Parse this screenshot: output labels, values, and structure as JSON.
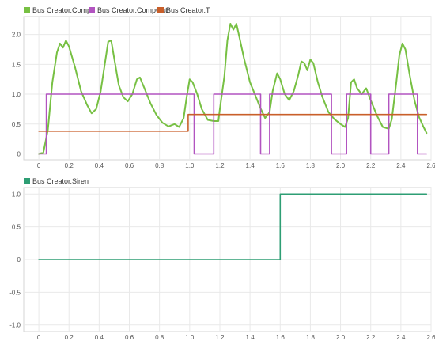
{
  "chart_data": [
    {
      "type": "line",
      "title": "",
      "xlabel": "",
      "ylabel": "",
      "xlim": [
        -0.1,
        2.6
      ],
      "ylim": [
        -0.1,
        2.3
      ],
      "xticks": [
        "0",
        "0.2",
        "0.4",
        "0.6",
        "0.8",
        "1.0",
        "1.2",
        "1.4",
        "1.6",
        "1.8",
        "2.0",
        "2.2",
        "2.4",
        "2.6"
      ],
      "yticks": [
        "0",
        "0.5",
        "1.0",
        "1.5",
        "2.0"
      ],
      "grid": true,
      "legend_position": "top-left",
      "series": [
        {
          "name": "Bus Creator.CompIn",
          "color": "#77c043",
          "step": false,
          "points": [
            [
              0,
              0
            ],
            [
              0.03,
              0.02
            ],
            [
              0.06,
              0.4
            ],
            [
              0.09,
              1.2
            ],
            [
              0.12,
              1.7
            ],
            [
              0.14,
              1.85
            ],
            [
              0.16,
              1.78
            ],
            [
              0.18,
              1.9
            ],
            [
              0.2,
              1.8
            ],
            [
              0.24,
              1.45
            ],
            [
              0.28,
              1.05
            ],
            [
              0.32,
              0.82
            ],
            [
              0.35,
              0.68
            ],
            [
              0.38,
              0.75
            ],
            [
              0.41,
              1.05
            ],
            [
              0.44,
              1.55
            ],
            [
              0.46,
              1.88
            ],
            [
              0.48,
              1.9
            ],
            [
              0.5,
              1.6
            ],
            [
              0.53,
              1.15
            ],
            [
              0.56,
              0.95
            ],
            [
              0.59,
              0.88
            ],
            [
              0.62,
              1.0
            ],
            [
              0.65,
              1.25
            ],
            [
              0.67,
              1.28
            ],
            [
              0.7,
              1.1
            ],
            [
              0.74,
              0.85
            ],
            [
              0.78,
              0.65
            ],
            [
              0.82,
              0.52
            ],
            [
              0.86,
              0.46
            ],
            [
              0.9,
              0.5
            ],
            [
              0.93,
              0.45
            ],
            [
              0.96,
              0.6
            ],
            [
              0.98,
              0.95
            ],
            [
              1.0,
              1.25
            ],
            [
              1.02,
              1.2
            ],
            [
              1.05,
              1.0
            ],
            [
              1.08,
              0.75
            ],
            [
              1.12,
              0.57
            ],
            [
              1.16,
              0.55
            ],
            [
              1.19,
              0.55
            ],
            [
              1.2,
              0.75
            ],
            [
              1.23,
              1.3
            ],
            [
              1.25,
              1.9
            ],
            [
              1.27,
              2.18
            ],
            [
              1.29,
              2.08
            ],
            [
              1.31,
              2.18
            ],
            [
              1.33,
              1.95
            ],
            [
              1.36,
              1.6
            ],
            [
              1.4,
              1.2
            ],
            [
              1.44,
              0.95
            ],
            [
              1.47,
              0.76
            ],
            [
              1.5,
              0.6
            ],
            [
              1.53,
              0.7
            ],
            [
              1.55,
              1.05
            ],
            [
              1.58,
              1.35
            ],
            [
              1.6,
              1.25
            ],
            [
              1.63,
              1.0
            ],
            [
              1.66,
              0.9
            ],
            [
              1.69,
              1.05
            ],
            [
              1.72,
              1.32
            ],
            [
              1.74,
              1.55
            ],
            [
              1.76,
              1.52
            ],
            [
              1.78,
              1.4
            ],
            [
              1.8,
              1.58
            ],
            [
              1.82,
              1.52
            ],
            [
              1.85,
              1.2
            ],
            [
              1.88,
              0.95
            ],
            [
              1.92,
              0.7
            ],
            [
              1.96,
              0.58
            ],
            [
              2.0,
              0.5
            ],
            [
              2.03,
              0.45
            ],
            [
              2.05,
              0.6
            ],
            [
              2.07,
              1.2
            ],
            [
              2.09,
              1.25
            ],
            [
              2.11,
              1.1
            ],
            [
              2.14,
              1.0
            ],
            [
              2.17,
              1.1
            ],
            [
              2.2,
              0.9
            ],
            [
              2.24,
              0.65
            ],
            [
              2.28,
              0.45
            ],
            [
              2.32,
              0.42
            ],
            [
              2.34,
              0.58
            ],
            [
              2.37,
              1.2
            ],
            [
              2.39,
              1.65
            ],
            [
              2.41,
              1.85
            ],
            [
              2.43,
              1.75
            ],
            [
              2.46,
              1.3
            ],
            [
              2.49,
              0.9
            ],
            [
              2.52,
              0.62
            ],
            [
              2.55,
              0.45
            ],
            [
              2.57,
              0.35
            ]
          ]
        },
        {
          "name": "Bus Creator.CompOut",
          "color": "#b254c0",
          "step": true,
          "points": [
            [
              0,
              0
            ],
            [
              0.05,
              0
            ],
            [
              0.05,
              1
            ],
            [
              1.03,
              1
            ],
            [
              1.03,
              0
            ],
            [
              1.16,
              0
            ],
            [
              1.16,
              1
            ],
            [
              1.47,
              1
            ],
            [
              1.47,
              0
            ],
            [
              1.53,
              0
            ],
            [
              1.53,
              1
            ],
            [
              1.94,
              1
            ],
            [
              1.94,
              0
            ],
            [
              2.04,
              0
            ],
            [
              2.04,
              1
            ],
            [
              2.2,
              1
            ],
            [
              2.2,
              0
            ],
            [
              2.32,
              0
            ],
            [
              2.32,
              1
            ],
            [
              2.51,
              1
            ],
            [
              2.51,
              0
            ],
            [
              2.57,
              0
            ]
          ]
        },
        {
          "name": "Bus Creator.T",
          "color": "#c95f2a",
          "step": true,
          "points": [
            [
              0,
              0.38
            ],
            [
              0.99,
              0.38
            ],
            [
              0.99,
              0.66
            ],
            [
              2.57,
              0.66
            ]
          ]
        }
      ]
    },
    {
      "type": "line",
      "title": "",
      "xlabel": "",
      "ylabel": "",
      "xlim": [
        -0.1,
        2.6
      ],
      "ylim": [
        -1.1,
        1.1
      ],
      "xticks": [
        "0",
        "0.2",
        "0.4",
        "0.6",
        "0.8",
        "1.0",
        "1.2",
        "1.4",
        "1.6",
        "1.8",
        "2.0",
        "2.2",
        "2.4",
        "2.6"
      ],
      "yticks": [
        "-1.0",
        "-0.5",
        "0",
        "0.5",
        "1.0"
      ],
      "grid": true,
      "legend_position": "top-left",
      "series": [
        {
          "name": "Bus Creator.Siren",
          "color": "#2e9e74",
          "step": true,
          "points": [
            [
              0,
              0
            ],
            [
              1.6,
              0
            ],
            [
              1.6,
              1
            ],
            [
              2.57,
              1
            ]
          ]
        }
      ]
    }
  ]
}
